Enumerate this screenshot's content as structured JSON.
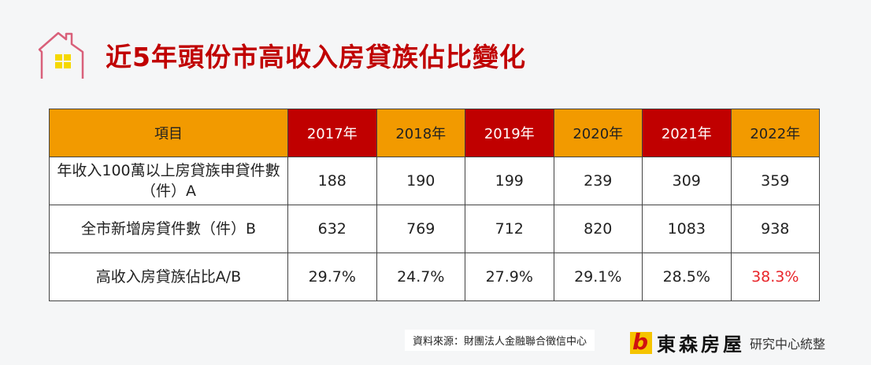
{
  "title": "近5年頭份市高收入房貸族佔比變化",
  "chart_data": {
    "type": "table",
    "columns": [
      "項目",
      "2017年",
      "2018年",
      "2019年",
      "2020年",
      "2021年",
      "2022年"
    ],
    "rows": [
      {
        "label": "年收入100萬以上房貸族申貸件數（件）A",
        "values": [
          "188",
          "190",
          "199",
          "239",
          "309",
          "359"
        ]
      },
      {
        "label": "全市新增房貸件數（件）B",
        "values": [
          "632",
          "769",
          "712",
          "820",
          "1083",
          "938"
        ]
      },
      {
        "label": "高收入房貸族佔比A/B",
        "values": [
          "29.7%",
          "24.7%",
          "27.9%",
          "29.1%",
          "28.5%",
          "38.3%"
        ]
      }
    ],
    "header_colors": {
      "orange": "#f29a00",
      "red": "#c00000"
    },
    "highlight": {
      "value": "38.3%",
      "color": "#e8262b"
    }
  },
  "source": "資料來源：財團法人金融聯合徵信中心",
  "brand": {
    "name": "東森房屋",
    "subtitle": "研究中心統整"
  }
}
